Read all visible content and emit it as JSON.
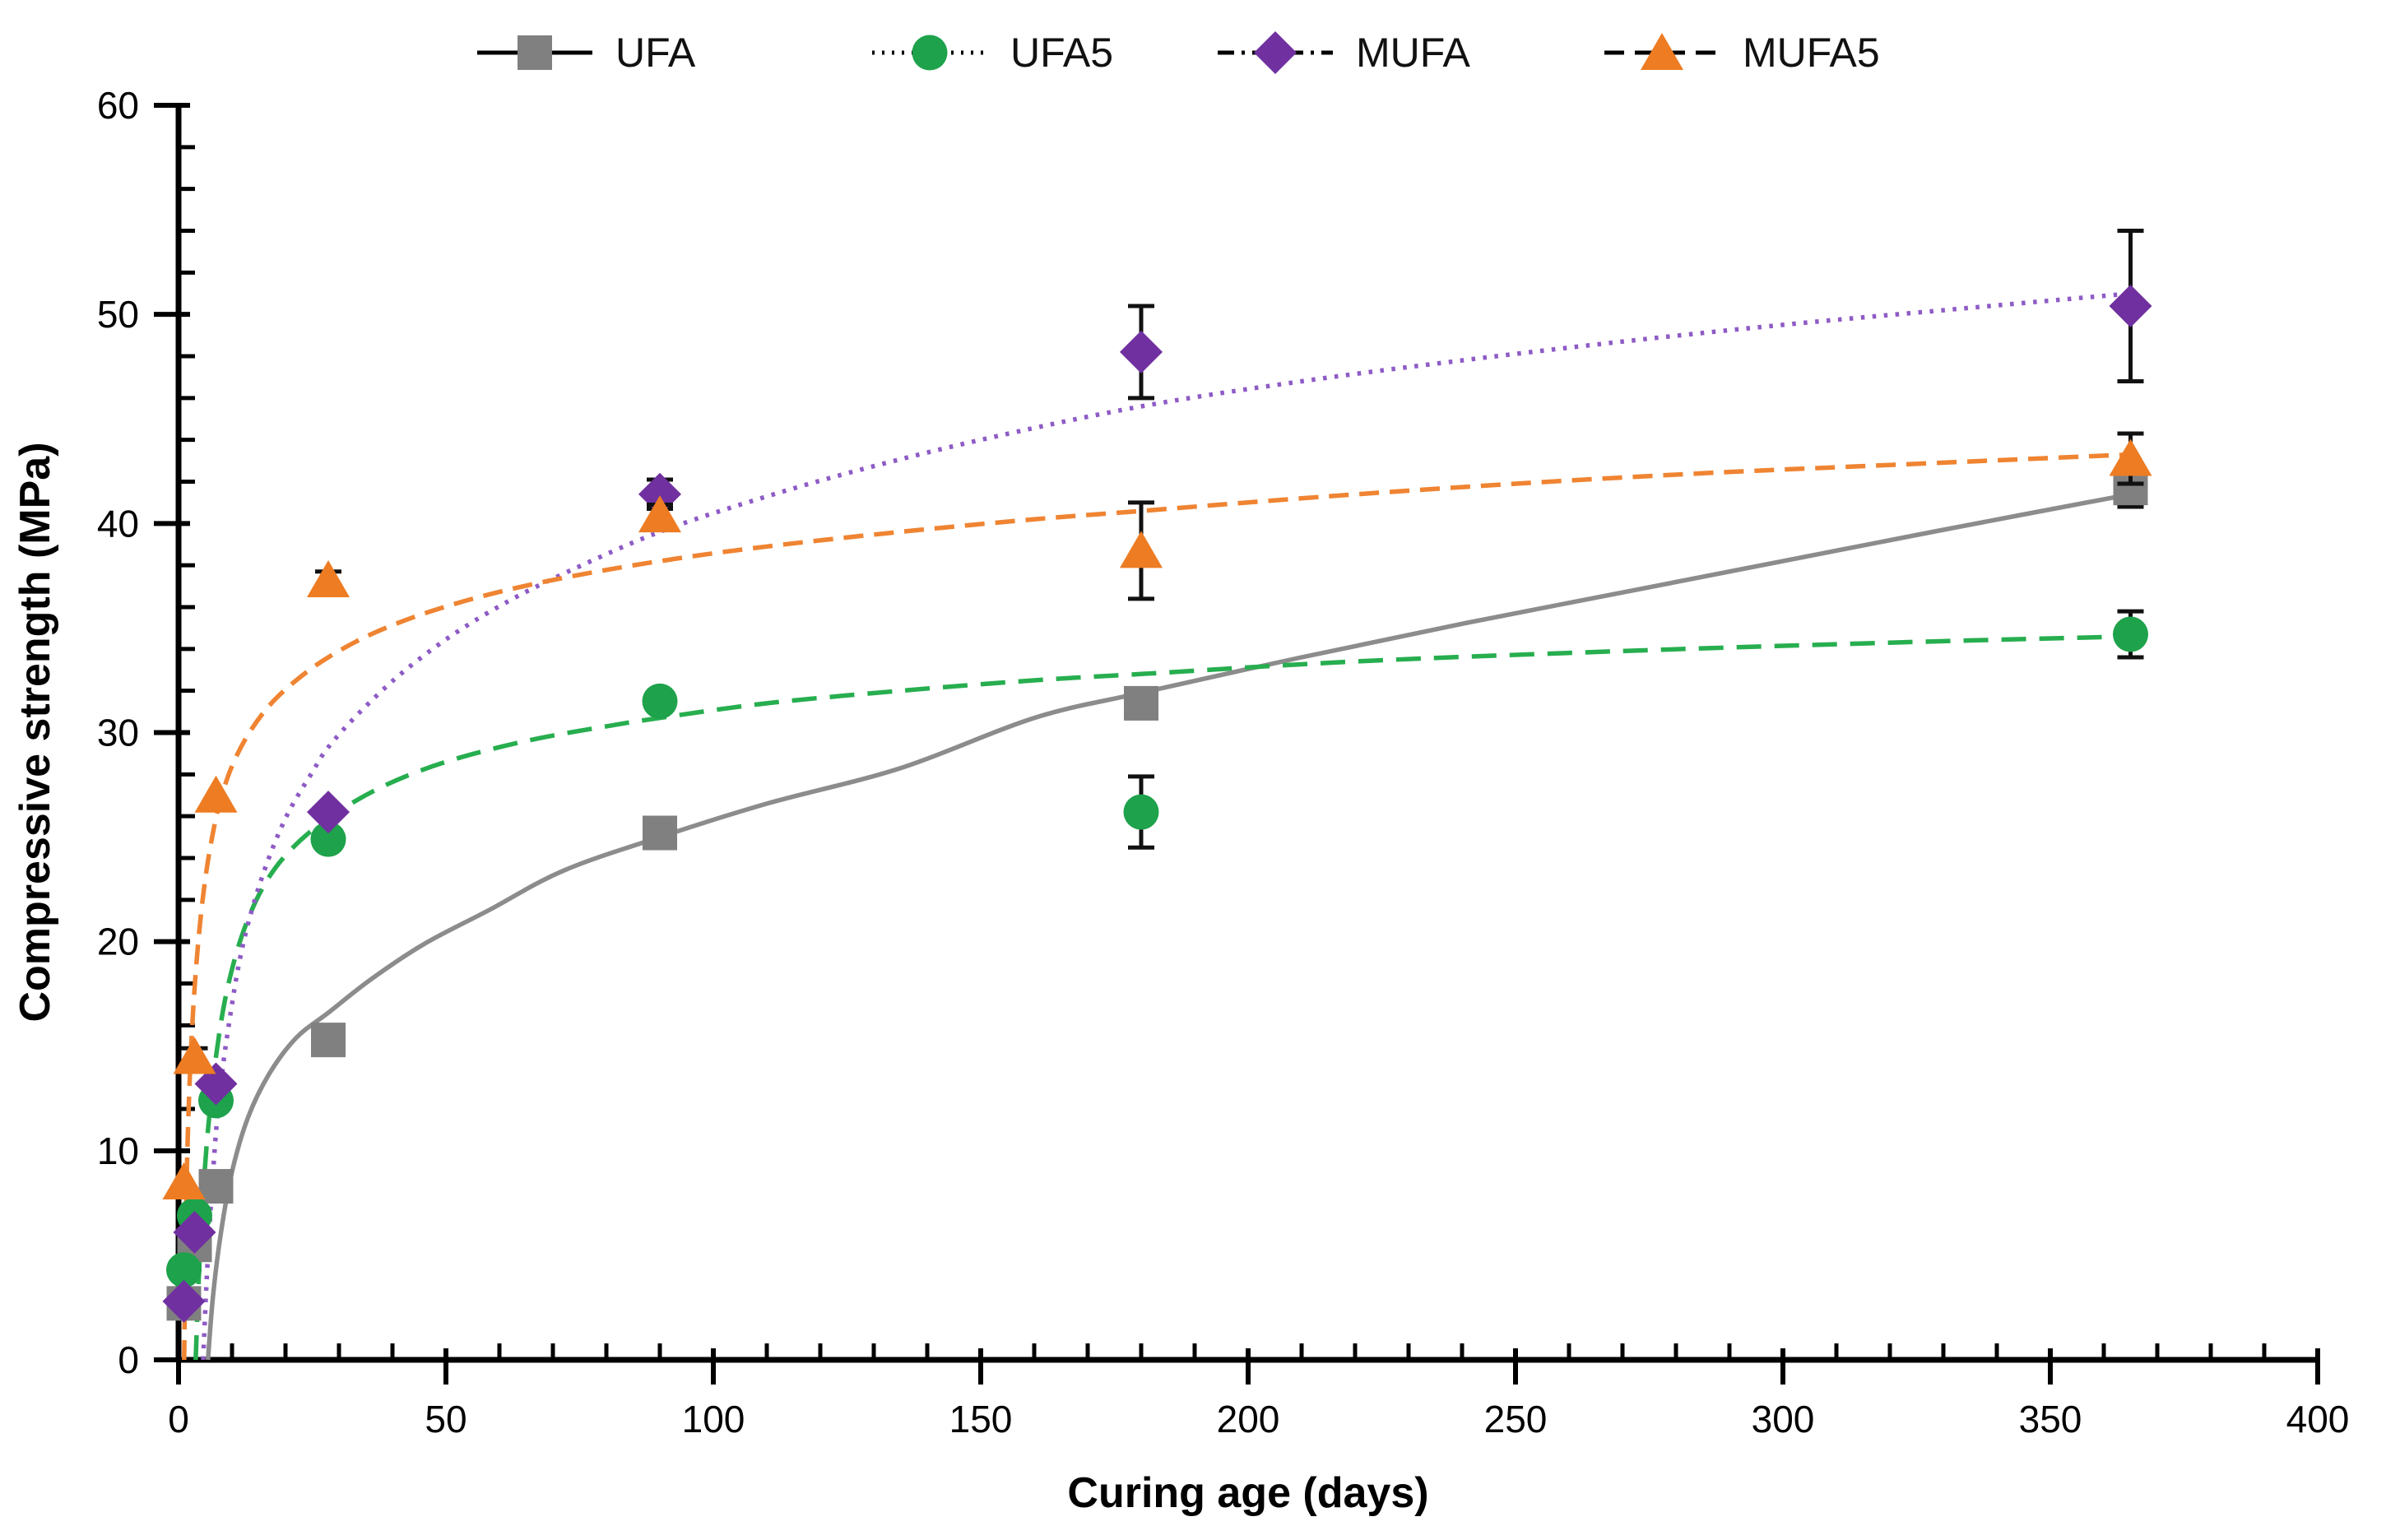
{
  "chart_data": {
    "type": "scatter",
    "title": "",
    "xlabel": "Curing age (days)",
    "ylabel": "Compressive strength (MPa)",
    "xlim": [
      0,
      400
    ],
    "ylim": [
      0,
      60
    ],
    "grid": false,
    "legend_position": "top",
    "x_axis": {
      "label": "Curing age (days)",
      "min": 0,
      "max": 400,
      "major_tick_step": 50,
      "minor_tick_step": 10,
      "tick_labels": [
        "0",
        "50",
        "100",
        "150",
        "200",
        "250",
        "300",
        "350",
        "400"
      ]
    },
    "y_axis": {
      "label": "Compressive strength (MPa)",
      "min": 0,
      "max": 60,
      "major_tick_step": 10,
      "minor_tick_step": 2,
      "tick_labels": [
        "0",
        "10",
        "20",
        "30",
        "40",
        "50",
        "60"
      ]
    },
    "ages_days": [
      1,
      3,
      7,
      28,
      90,
      180,
      365
    ],
    "series": [
      {
        "name": "UFA",
        "marker": "square",
        "marker_color": "#808080",
        "line_color": "#8C8C8C",
        "line_style": "solid",
        "legend_line_style": "solid",
        "values": [
          2.7,
          5.5,
          8.3,
          15.3,
          25.2,
          31.4,
          41.7
        ],
        "y_err": [
          0,
          0,
          0,
          0,
          0,
          0,
          0.9
        ],
        "fit_curve": [
          [
            5.5,
            0
          ],
          [
            6.5,
            3.2
          ],
          [
            8,
            6.2
          ],
          [
            10,
            9.0
          ],
          [
            13,
            11.6
          ],
          [
            17,
            13.7
          ],
          [
            22,
            15.4
          ],
          [
            28,
            16.6
          ],
          [
            36,
            18.2
          ],
          [
            46,
            19.9
          ],
          [
            58,
            21.5
          ],
          [
            72,
            23.4
          ],
          [
            90,
            25.0
          ],
          [
            110,
            26.6
          ],
          [
            135,
            28.3
          ],
          [
            160,
            30.7
          ],
          [
            180,
            31.9
          ],
          [
            210,
            33.6
          ],
          [
            240,
            35.2
          ],
          [
            270,
            36.7
          ],
          [
            300,
            38.2
          ],
          [
            330,
            39.7
          ],
          [
            365,
            41.4
          ]
        ]
      },
      {
        "name": "UFA5",
        "marker": "circle",
        "marker_color": "#1EA24B",
        "line_color": "#27AE4F",
        "line_style": "long-dash",
        "legend_line_style": "dotted",
        "values": [
          4.3,
          6.9,
          12.4,
          24.9,
          31.5,
          26.2,
          34.7
        ],
        "y_err": [
          0,
          0,
          0,
          0,
          0,
          1.7,
          1.1
        ],
        "fit_curve": [
          [
            3.2,
            0
          ],
          [
            3.8,
            4
          ],
          [
            4.5,
            7.5
          ],
          [
            5.5,
            11
          ],
          [
            7,
            14.5
          ],
          [
            9,
            17.6
          ],
          [
            12,
            20.4
          ],
          [
            16,
            22.7
          ],
          [
            21,
            24.4
          ],
          [
            28,
            25.9
          ],
          [
            38,
            27.4
          ],
          [
            50,
            28.6
          ],
          [
            65,
            29.6
          ],
          [
            80,
            30.3
          ],
          [
            90,
            30.7
          ],
          [
            110,
            31.4
          ],
          [
            135,
            32.0
          ],
          [
            160,
            32.5
          ],
          [
            180,
            32.8
          ],
          [
            220,
            33.4
          ],
          [
            270,
            33.9
          ],
          [
            320,
            34.3
          ],
          [
            365,
            34.6
          ]
        ]
      },
      {
        "name": "MUFA",
        "marker": "diamond",
        "marker_color": "#7030A0",
        "line_color": "#8E5BC5",
        "line_style": "dotted",
        "legend_line_style": "dash-dot",
        "values": [
          2.8,
          6.1,
          13.2,
          26.2,
          41.4,
          48.2,
          50.4
        ],
        "y_err": [
          0,
          0,
          0,
          0,
          0.7,
          2.2,
          3.6
        ],
        "fit_curve": [
          [
            4.6,
            0
          ],
          [
            5.3,
            4
          ],
          [
            6.2,
            8
          ],
          [
            7.5,
            12.3
          ],
          [
            9.5,
            16.2
          ],
          [
            12,
            19.8
          ],
          [
            15.5,
            23.0
          ],
          [
            20,
            25.9
          ],
          [
            25,
            28.1
          ],
          [
            28,
            29.3
          ],
          [
            34,
            31.0
          ],
          [
            42,
            32.9
          ],
          [
            52,
            34.8
          ],
          [
            64,
            36.6
          ],
          [
            78,
            38.3
          ],
          [
            90,
            39.6
          ],
          [
            105,
            40.9
          ],
          [
            125,
            42.4
          ],
          [
            150,
            44.0
          ],
          [
            180,
            45.6
          ],
          [
            210,
            46.8
          ],
          [
            240,
            47.8
          ],
          [
            270,
            48.7
          ],
          [
            300,
            49.5
          ],
          [
            330,
            50.2
          ],
          [
            365,
            51.0
          ]
        ]
      },
      {
        "name": "MUFA5",
        "marker": "triangle",
        "marker_color": "#ED7C23",
        "line_color": "#EF8432",
        "line_style": "dash",
        "legend_line_style": "dash",
        "values": [
          8.5,
          14.5,
          27.0,
          37.3,
          40.4,
          38.7,
          43.1
        ],
        "y_err": [
          0,
          0.4,
          0,
          0.4,
          0.5,
          2.3,
          1.2
        ],
        "fit_curve": [
          [
            1.05,
            0
          ],
          [
            1.3,
            5
          ],
          [
            1.6,
            9.5
          ],
          [
            2.1,
            13.5
          ],
          [
            2.8,
            17
          ],
          [
            3.8,
            20.3
          ],
          [
            5,
            23
          ],
          [
            6.5,
            25.3
          ],
          [
            8,
            26.9
          ],
          [
            10,
            28.4
          ],
          [
            13,
            29.9
          ],
          [
            17,
            31.3
          ],
          [
            22,
            32.5
          ],
          [
            28,
            33.6
          ],
          [
            36,
            34.7
          ],
          [
            46,
            35.7
          ],
          [
            58,
            36.6
          ],
          [
            72,
            37.4
          ],
          [
            90,
            38.2
          ],
          [
            110,
            38.9
          ],
          [
            135,
            39.6
          ],
          [
            160,
            40.2
          ],
          [
            180,
            40.6
          ],
          [
            215,
            41.3
          ],
          [
            250,
            41.9
          ],
          [
            285,
            42.4
          ],
          [
            320,
            42.8
          ],
          [
            365,
            43.3
          ]
        ]
      }
    ]
  }
}
